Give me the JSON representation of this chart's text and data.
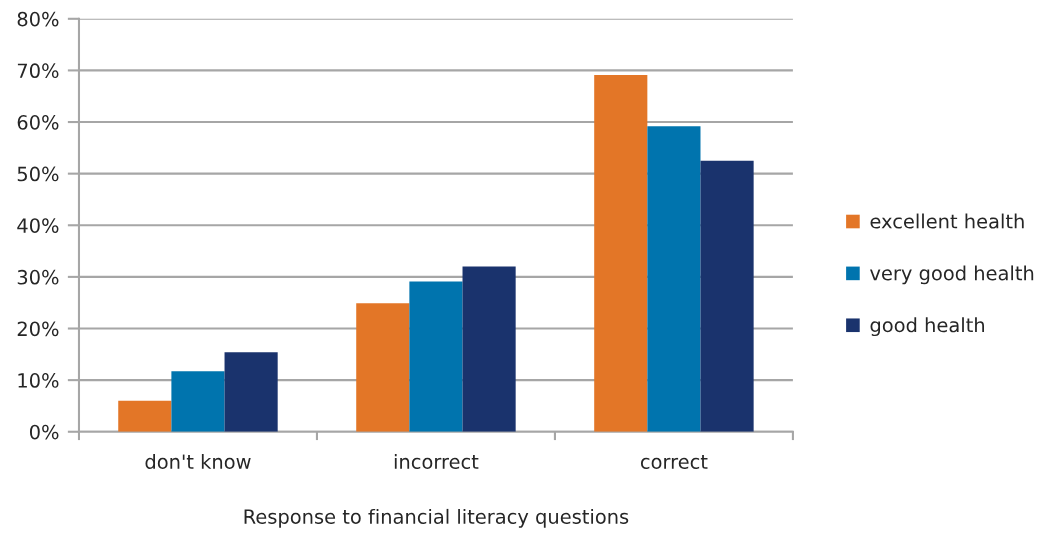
{
  "chart_data": {
    "type": "bar",
    "xlabel": "Response to financial literacy questions",
    "categories": [
      "don't know",
      "incorrect",
      "correct"
    ],
    "series": [
      {
        "name": "excellent health",
        "color": "#e37627",
        "values": [
          6.0,
          24.9,
          69.1
        ]
      },
      {
        "name": "very good health",
        "color": "#0074ae",
        "values": [
          11.7,
          29.1,
          59.2
        ]
      },
      {
        "name": "good health",
        "color": "#1a336d",
        "values": [
          15.4,
          32.0,
          52.5
        ]
      }
    ],
    "ylim": [
      0,
      80
    ],
    "yticks": [
      {
        "value": 0,
        "label": "0%"
      },
      {
        "value": 10,
        "label": "10%"
      },
      {
        "value": 20,
        "label": "20%"
      },
      {
        "value": 30,
        "label": "30%"
      },
      {
        "value": 40,
        "label": "40%"
      },
      {
        "value": 50,
        "label": "50%"
      },
      {
        "value": 60,
        "label": "60%"
      },
      {
        "value": 70,
        "label": "70%"
      },
      {
        "value": 80,
        "label": "80%"
      }
    ],
    "grid": "y",
    "legend": "right"
  }
}
